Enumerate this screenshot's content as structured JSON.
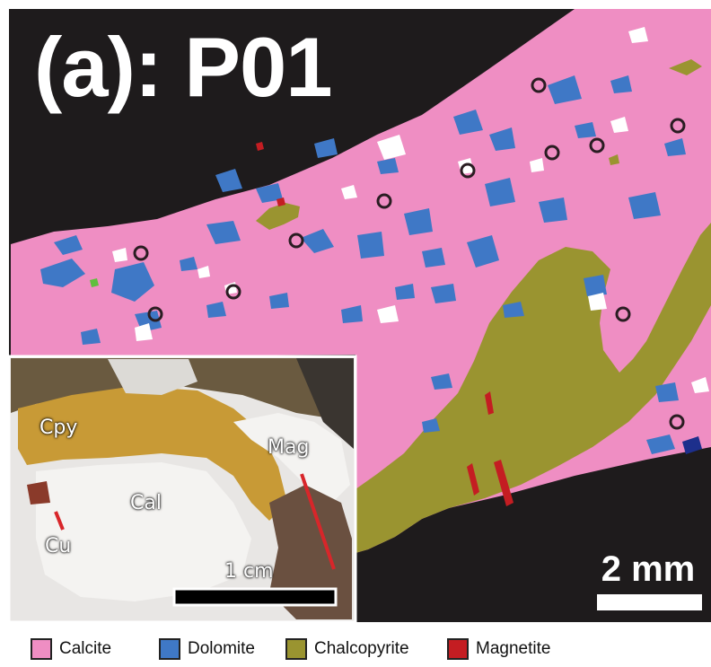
{
  "panel_label": "(a): P01",
  "scale_bar_label": "2 mm",
  "inset": {
    "scale_label": "1 cm",
    "labels": {
      "cpy": "Cpy",
      "mag": "Mag",
      "cal": "Cal",
      "cu": "Cu"
    }
  },
  "legend": [
    {
      "label": "Calcite",
      "color": "#ef8ec3"
    },
    {
      "label": "Dolomite",
      "color": "#3f78c6"
    },
    {
      "label": "Chalcopyrite",
      "color": "#9a9430"
    },
    {
      "label": "Magnetite",
      "color": "#c41d22"
    }
  ],
  "colors": {
    "background": "#1e1b1c",
    "calcite": "#ef8ec3",
    "dolomite": "#3f78c6",
    "chalcopyrite": "#9a9430",
    "magnetite": "#c41d22",
    "analysis_spot": "#2a1d22"
  }
}
